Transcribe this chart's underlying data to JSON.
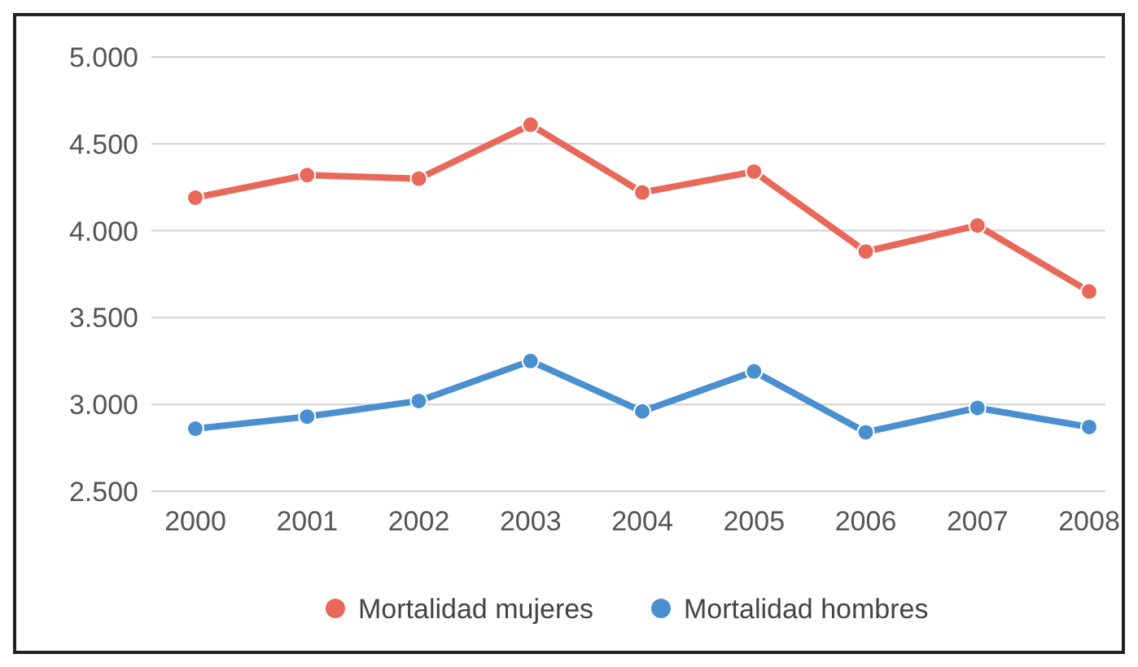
{
  "chart_data": {
    "type": "line",
    "categories": [
      "2000",
      "2001",
      "2002",
      "2003",
      "2004",
      "2005",
      "2006",
      "2007",
      "2008"
    ],
    "series": [
      {
        "name": "Mortalidad mujeres",
        "color": "#e8685a",
        "values": [
          4190,
          4320,
          4300,
          4610,
          4220,
          4340,
          3880,
          4030,
          3650
        ]
      },
      {
        "name": "Mortalidad hombres",
        "color": "#4a8fd0",
        "values": [
          2860,
          2930,
          3020,
          3250,
          2960,
          3190,
          2840,
          2980,
          2870
        ]
      }
    ],
    "ylim": [
      2500,
      5000
    ],
    "yticks": [
      {
        "value": 2500,
        "label": "2.500"
      },
      {
        "value": 3000,
        "label": "3.000"
      },
      {
        "value": 3500,
        "label": "3.500"
      },
      {
        "value": 4000,
        "label": "4.000"
      },
      {
        "value": 4500,
        "label": "4.500"
      },
      {
        "value": 5000,
        "label": "5.000"
      }
    ],
    "grid": "y",
    "legend": "bottom",
    "marker": "circle",
    "line_style": "solid"
  }
}
